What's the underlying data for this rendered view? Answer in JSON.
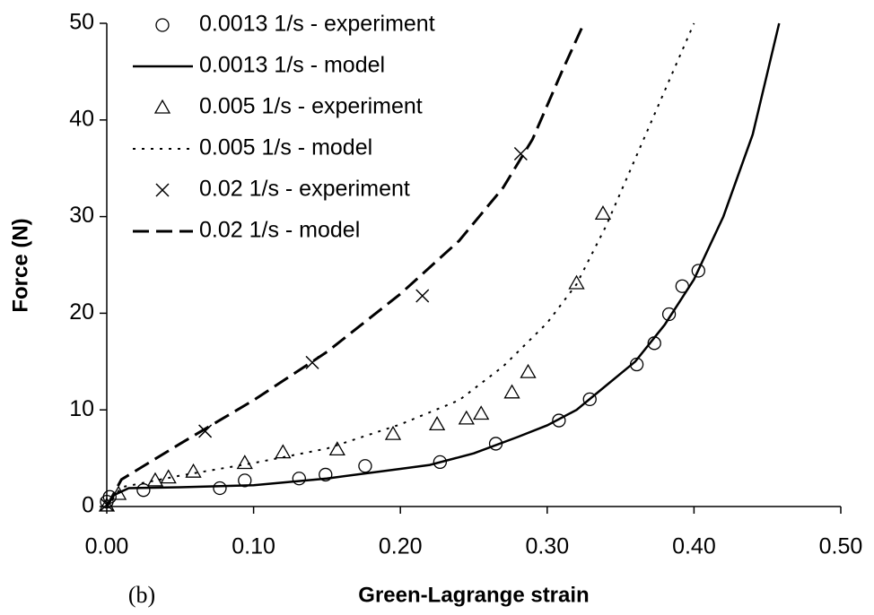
{
  "chart_data": {
    "type": "line",
    "xlabel": "Green-Lagrange strain",
    "ylabel": "Force (N)",
    "annotation": "(b)",
    "xlim": [
      0,
      0.5
    ],
    "ylim": [
      0,
      50
    ],
    "xticks": [
      {
        "value": 0,
        "label": "0.00"
      },
      {
        "value": 0.1,
        "label": "0.10"
      },
      {
        "value": 0.2,
        "label": "0.20"
      },
      {
        "value": 0.3,
        "label": "0.30"
      },
      {
        "value": 0.4,
        "label": "0.40"
      },
      {
        "value": 0.5,
        "label": "0.50"
      }
    ],
    "yticks": [
      0,
      10,
      20,
      30,
      40,
      50
    ],
    "legend": "upper left",
    "series": [
      {
        "name": "0.0013 1/s - experiment",
        "color": "#000000",
        "marker": "circle",
        "x": [
          0,
          0.002,
          0.025,
          0.077,
          0.094,
          0.131,
          0.149,
          0.176,
          0.227,
          0.265,
          0.308,
          0.329,
          0.361,
          0.373,
          0.383,
          0.392,
          0.403
        ],
        "values": [
          0.5,
          1.0,
          1.7,
          1.9,
          2.7,
          2.9,
          3.3,
          4.2,
          4.6,
          6.5,
          8.9,
          11.1,
          14.7,
          16.9,
          19.9,
          22.8,
          24.4
        ]
      },
      {
        "name": "0.0013 1/s - model",
        "color": "#000000",
        "line": "solid",
        "x": [
          0,
          0.005,
          0.015,
          0.05,
          0.1,
          0.15,
          0.2,
          0.22,
          0.25,
          0.28,
          0.3,
          0.32,
          0.34,
          0.36,
          0.38,
          0.4,
          0.42,
          0.44,
          0.458
        ],
        "values": [
          0,
          1.2,
          1.9,
          2.0,
          2.2,
          2.9,
          3.9,
          4.3,
          5.5,
          7.2,
          8.4,
          10,
          12.5,
          15,
          18.8,
          23.5,
          30,
          38.5,
          50
        ]
      },
      {
        "name": "0.005 1/s - experiment",
        "color": "#000000",
        "marker": "triangle",
        "x": [
          0,
          0.008,
          0.033,
          0.042,
          0.059,
          0.094,
          0.12,
          0.157,
          0.195,
          0.225,
          0.245,
          0.255,
          0.276,
          0.287,
          0.32,
          0.338
        ],
        "values": [
          0.1,
          1.3,
          2.7,
          3.0,
          3.6,
          4.5,
          5.6,
          5.9,
          7.5,
          8.5,
          9.1,
          9.6,
          11.8,
          13.9,
          23.1,
          30.3
        ]
      },
      {
        "name": "0.005 1/s - model",
        "color": "#000000",
        "line": "dotted",
        "x": [
          0,
          0.01,
          0.05,
          0.1,
          0.15,
          0.2,
          0.24,
          0.27,
          0.3,
          0.32,
          0.34,
          0.36,
          0.38,
          0.4
        ],
        "values": [
          0,
          2.0,
          3.2,
          4.5,
          6.0,
          8.5,
          11,
          14.5,
          19,
          23,
          29,
          36,
          43,
          50
        ]
      },
      {
        "name": "0.02 1/s - experiment",
        "color": "#000000",
        "marker": "cross",
        "x": [
          0,
          0.067,
          0.14,
          0.215,
          0.282
        ],
        "values": [
          0.2,
          7.8,
          14.9,
          21.8,
          36.5
        ]
      },
      {
        "name": "0.02 1/s - model",
        "color": "#000000",
        "line": "dashed",
        "x": [
          0,
          0.01,
          0.05,
          0.1,
          0.15,
          0.2,
          0.24,
          0.27,
          0.29,
          0.31,
          0.325
        ],
        "values": [
          0,
          2.8,
          6.5,
          11,
          16,
          22,
          27.5,
          33,
          38,
          45,
          50
        ]
      }
    ]
  }
}
